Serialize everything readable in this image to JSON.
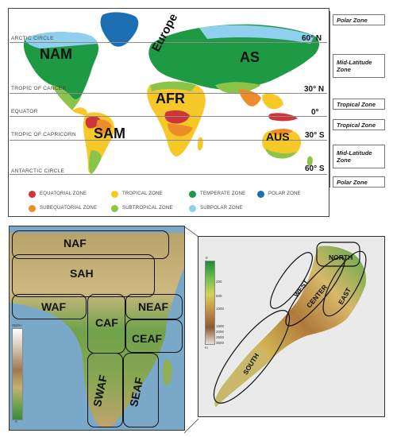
{
  "world_map": {
    "latitude_lines": {
      "arctic_circle": "ARCTIC CIRCLE",
      "tropic_of_cancer": "TROPIC OF CANCER",
      "equator": "EQUATOR",
      "tropic_of_capricorn": "TROPIC OF CAPRICORN",
      "antarctic_circle": "ANTARCTIC CIRCLE"
    },
    "degree_labels": {
      "n60": "60° N",
      "n30": "30° N",
      "eq": "0°",
      "s30": "30° S",
      "s60": "60° S"
    },
    "regions": {
      "nam": "NAM",
      "europe": "Europe",
      "as": "AS",
      "afr": "AFR",
      "sam": "SAM",
      "aus": "AUS"
    },
    "legend": [
      {
        "label": "EQUATORIAL ZONE",
        "color": "#d0343a"
      },
      {
        "label": "TROPICAL ZONE",
        "color": "#f6c928"
      },
      {
        "label": "TEMPERATE ZONE",
        "color": "#1e9a44"
      },
      {
        "label": "POLAR ZONE",
        "color": "#1d6fb3"
      },
      {
        "label": "SUBEQUATORIAL ZONE",
        "color": "#ef8c2a"
      },
      {
        "label": "SUBTROPICAL ZONE",
        "color": "#8cc44a"
      },
      {
        "label": "SUBPOLAR ZONE",
        "color": "#8fd0ee"
      }
    ]
  },
  "zones": {
    "polar_top": "Polar Zone",
    "mid_lat_top": "Mid-Latitude Zone",
    "tropical_top": "Tropical Zone",
    "tropical_bottom": "Tropical Zone",
    "mid_lat_bottom": "Mid-Latitude Zone",
    "polar_bottom": "Polar Zone"
  },
  "africa_map": {
    "regions": {
      "naf": "NAF",
      "sah": "SAH",
      "waf": "WAF",
      "caf": "CAF",
      "neaf": "NEAF",
      "ceaf": "CEAF",
      "swaf": "SWAF",
      "seaf": "SEAF"
    },
    "colorbar": {
      "top": "2520+",
      "bottom": "0"
    }
  },
  "morocco_map": {
    "regions": {
      "north": "NORTH",
      "west": "WEST",
      "center": "CENTER",
      "east": "EAST",
      "south": "SOUTH"
    },
    "colorbar": {
      "ticks": [
        "0",
        "200",
        "500",
        "1000",
        "1500",
        "2000",
        "2500",
        "3500"
      ],
      "unit": "m"
    }
  }
}
